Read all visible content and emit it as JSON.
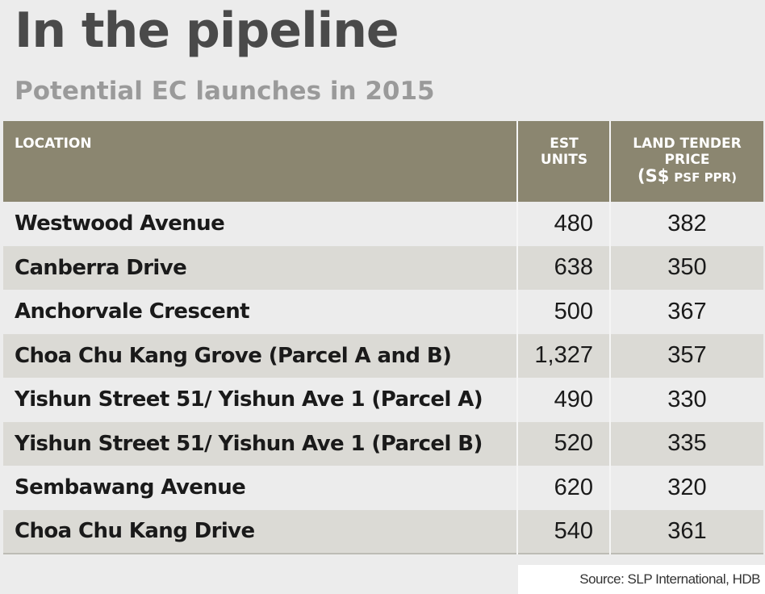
{
  "title": "In the pipeline",
  "subtitle": "Potential EC launches in 2015",
  "table": {
    "headers": {
      "location": "LOCATION",
      "units_line1": "EST",
      "units_line2": "UNITS",
      "price_line1": "LAND TENDER",
      "price_line2": "PRICE",
      "price_line3_currency": "(S$",
      "price_line3_unit": "PSF PPR)"
    },
    "rows": [
      {
        "location": "Westwood Avenue",
        "units": "480",
        "price": "382"
      },
      {
        "location": "Canberra Drive",
        "units": "638",
        "price": "350"
      },
      {
        "location": "Anchorvale Crescent",
        "units": "500",
        "price": "367"
      },
      {
        "location": "Choa Chu Kang Grove (Parcel A and B)",
        "units": "1,327",
        "price": "357"
      },
      {
        "location": "Yishun Street 51/ Yishun Ave 1 (Parcel A)",
        "units": "490",
        "price": "330"
      },
      {
        "location": "Yishun Street 51/ Yishun Ave 1 (Parcel B)",
        "units": "520",
        "price": "335"
      },
      {
        "location": "Sembawang Avenue",
        "units": "620",
        "price": "320"
      },
      {
        "location": "Choa Chu Kang Drive",
        "units": "540",
        "price": "361"
      }
    ]
  },
  "source": "Source: SLP International, HDB",
  "colors": {
    "header_bg": "#8b8670",
    "row_alt_bg": "#dbdad5",
    "title": "#4a4a4a",
    "subtitle": "#9a9a9a"
  }
}
